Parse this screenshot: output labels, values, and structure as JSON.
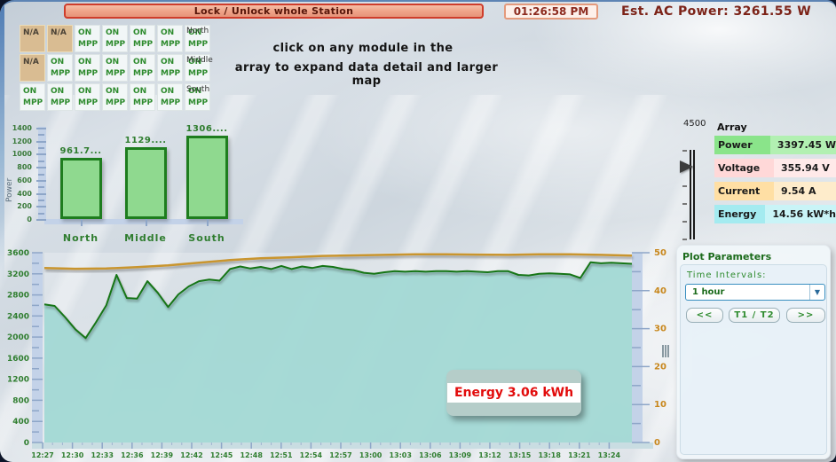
{
  "header": {
    "lock_button_label": "Lock / Unlock whole Station",
    "time": "01:26:58 PM",
    "est_ac_power": "Est. AC Power: 3261.55 W"
  },
  "module_array": {
    "na_label": "N/A",
    "on_label": "ON",
    "mpp_label": "MPP",
    "rows": [
      {
        "label": "North",
        "cells": [
          "na",
          "na",
          "on",
          "on",
          "on",
          "on",
          "on"
        ]
      },
      {
        "label": "Middle",
        "cells": [
          "na",
          "on",
          "on",
          "on",
          "on",
          "on",
          "on"
        ]
      },
      {
        "label": "South",
        "cells": [
          "on",
          "on",
          "on",
          "on",
          "on",
          "on",
          "on"
        ]
      }
    ],
    "hint_line1": "click on any module in the",
    "hint_line2": "array to expand data detail and larger map"
  },
  "array_panel": {
    "slider_top_label": "4500",
    "title": "Array",
    "rows": [
      {
        "label": "Power",
        "value": "3397.45 W",
        "label_bg": "#8ae48a",
        "value_bg": "#b2f0b2"
      },
      {
        "label": "Voltage",
        "value": "355.94 V",
        "label_bg": "#ffd8d8",
        "value_bg": "#ffe9e9"
      },
      {
        "label": "Current",
        "value": "9.54 A",
        "label_bg": "#ffdfa4",
        "value_bg": "#feeccb"
      },
      {
        "label": "Energy",
        "value": "14.56 kW*h",
        "label_bg": "#a4ebf0",
        "value_bg": "#c9f4f7"
      }
    ]
  },
  "plot_parameters": {
    "title": "Plot Parameters",
    "time_intervals_label": "Time Intervals:",
    "interval_selected": "1 hour",
    "dropdown_arrow": "▼",
    "buttons": [
      {
        "label": "<<"
      },
      {
        "label": "T1 / T2"
      },
      {
        "label": ">>"
      }
    ]
  },
  "chart_data": [
    {
      "type": "bar",
      "title": "",
      "xlabel": "",
      "ylabel": "Power",
      "ylim": [
        0,
        1400
      ],
      "yticks": [
        0,
        200,
        400,
        600,
        800,
        1000,
        1200,
        1400
      ],
      "categories": [
        "North",
        "Middle",
        "South"
      ],
      "values": [
        961.7,
        1129,
        1306
      ],
      "value_labels": [
        "961.7...",
        "1129....",
        "1306...."
      ],
      "bar_fill": "#8fd98f",
      "bar_stroke": "#1e7d1e",
      "legend_position": "none",
      "grid": false
    },
    {
      "type": "area",
      "title": "",
      "xlabel": "",
      "ylabel_left": "",
      "ylim_left": [
        0,
        3600
      ],
      "yticks_left": [
        0,
        400,
        800,
        1200,
        1600,
        2000,
        2400,
        2800,
        3200,
        3600
      ],
      "ylim_right": [
        0,
        50
      ],
      "yticks_right": [
        0,
        10,
        20,
        30,
        40,
        50
      ],
      "x_tick_labels": [
        "12:27",
        "12:30",
        "12:33",
        "12:36",
        "12:39",
        "12:42",
        "12:45",
        "12:48",
        "12:51",
        "12:54",
        "12:57",
        "13:00",
        "13:03",
        "13:06",
        "13:09",
        "13:12",
        "13:15",
        "13:18",
        "13:21",
        "13:24"
      ],
      "grid": false,
      "legend_position": "none",
      "series": [
        {
          "name": "array-power-w",
          "axis": "left",
          "color": "#157515",
          "fill": "#a2d8d4",
          "values": [
            2620,
            2590,
            2380,
            2150,
            1980,
            2280,
            2600,
            3180,
            2740,
            2730,
            3060,
            2840,
            2570,
            2810,
            2960,
            3060,
            3090,
            3070,
            3290,
            3340,
            3300,
            3330,
            3290,
            3350,
            3290,
            3340,
            3310,
            3350,
            3330,
            3290,
            3270,
            3220,
            3200,
            3230,
            3250,
            3240,
            3250,
            3240,
            3250,
            3250,
            3240,
            3250,
            3240,
            3230,
            3250,
            3250,
            3180,
            3170,
            3200,
            3210,
            3200,
            3190,
            3120,
            3420,
            3400,
            3410,
            3400,
            3390
          ]
        },
        {
          "name": "upper-reference-w",
          "axis": "left",
          "color": "#c9952f",
          "fill": null,
          "values": [
            3310,
            3295,
            3300,
            3325,
            3360,
            3410,
            3460,
            3495,
            3515,
            3540,
            3550,
            3560,
            3570,
            3570,
            3565,
            3560,
            3570,
            3570,
            3560,
            3545
          ]
        }
      ],
      "tooltip": {
        "text": "Energy 3.06 kWh"
      }
    }
  ]
}
